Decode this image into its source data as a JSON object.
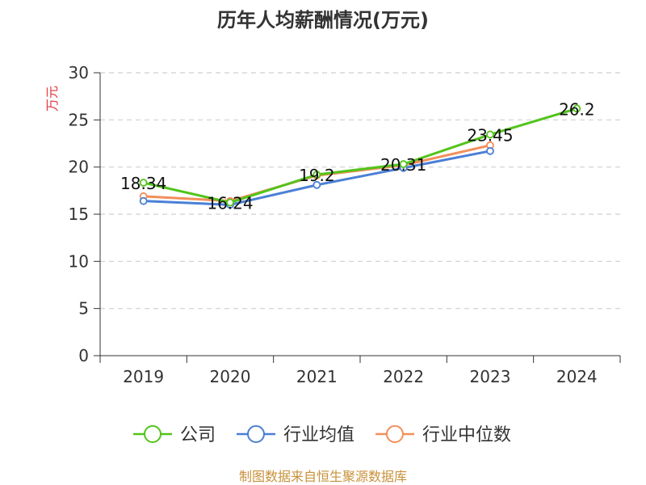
{
  "chart_data": {
    "type": "line",
    "title": "历年人均薪酬情况(万元)",
    "ylabel": "万元",
    "xlabel": "",
    "categories": [
      "2019",
      "2020",
      "2021",
      "2022",
      "2023",
      "2024"
    ],
    "ylim": [
      0,
      30
    ],
    "yticks": [
      0,
      5,
      10,
      15,
      20,
      25,
      30
    ],
    "grid": "horizontal-dashed",
    "legend_position": "bottom",
    "series": [
      {
        "name": "公司",
        "color": "#52c41a",
        "values": [
          18.34,
          16.24,
          19.2,
          20.31,
          23.45,
          26.2
        ],
        "labels": [
          "18.34",
          "16.24",
          "19.2",
          "20.31",
          "23.45",
          "26.2"
        ]
      },
      {
        "name": "行业均值",
        "color": "#4a7fd6",
        "values": [
          16.4,
          16.0,
          18.1,
          19.9,
          21.7,
          null
        ]
      },
      {
        "name": "行业中位数",
        "color": "#f28f5a",
        "values": [
          16.9,
          16.4,
          19.1,
          20.2,
          22.3,
          null
        ]
      }
    ],
    "source": "制图数据来自恒生聚源数据库"
  }
}
